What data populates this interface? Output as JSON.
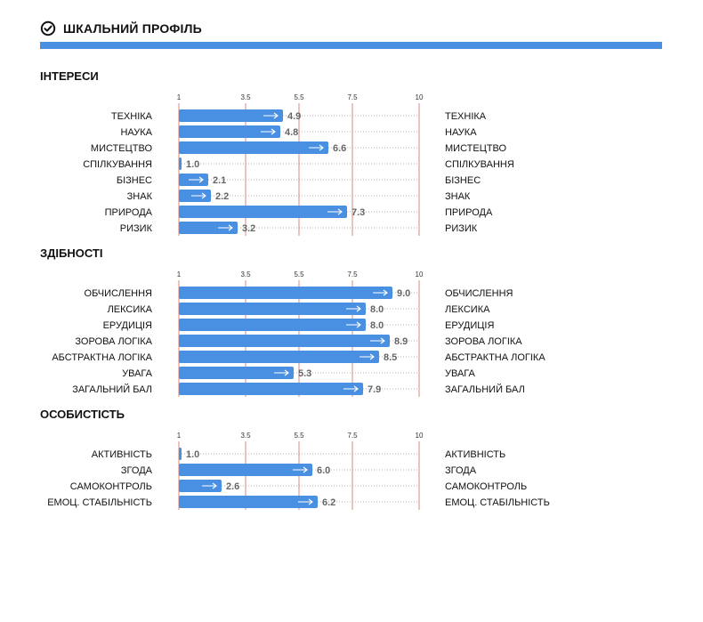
{
  "header": {
    "title": "ШКАЛЬНИЙ ПРОФІЛЬ",
    "icon": "check-circle-icon"
  },
  "colors": {
    "accent": "#4a90e2",
    "bar": "#4a90e2",
    "gridline": "#c0392b",
    "dots": "#999999"
  },
  "chart_data": [
    {
      "type": "bar",
      "orientation": "horizontal",
      "title": "ІНТЕРЕСИ",
      "xticks": [
        "1",
        "3.5",
        "5.5",
        "7.5",
        "10"
      ],
      "xlim": [
        1,
        10
      ],
      "categories": [
        "ТЕХНІКА",
        "НАУКА",
        "МИСТЕЦТВО",
        "СПІЛКУВАННЯ",
        "БІЗНЕС",
        "ЗНАК",
        "ПРИРОДА",
        "РИЗИК"
      ],
      "values": [
        4.9,
        4.8,
        6.6,
        1.0,
        2.1,
        2.2,
        7.3,
        3.2
      ],
      "value_labels": [
        "4.9",
        "4.8",
        "6.6",
        "1.0",
        "2.1",
        "2.2",
        "7.3",
        "3.2"
      ]
    },
    {
      "type": "bar",
      "orientation": "horizontal",
      "title": "ЗДІБНОСТІ",
      "xticks": [
        "1",
        "3.5",
        "5.5",
        "7.5",
        "10"
      ],
      "xlim": [
        1,
        10
      ],
      "categories": [
        "ОБЧИСЛЕННЯ",
        "ЛЕКСИКА",
        "ЕРУДИЦІЯ",
        "ЗОРОВА ЛОГІКА",
        "АБСТРАКТНА ЛОГІКА",
        "УВАГА",
        "ЗАГАЛЬНИЙ БАЛ"
      ],
      "values": [
        9.0,
        8.0,
        8.0,
        8.9,
        8.5,
        5.3,
        7.9
      ],
      "value_labels": [
        "9.0",
        "8.0",
        "8.0",
        "8.9",
        "8.5",
        "5.3",
        "7.9"
      ]
    },
    {
      "type": "bar",
      "orientation": "horizontal",
      "title": "ОСОБИСТІСТЬ",
      "xticks": [
        "1",
        "3.5",
        "5.5",
        "7.5",
        "10"
      ],
      "xlim": [
        1,
        10
      ],
      "categories": [
        "АКТИВНІСТЬ",
        "ЗГОДА",
        "САМОКОНТРОЛЬ",
        "ЕМОЦ. СТАБІЛЬНІСТЬ"
      ],
      "values": [
        1.0,
        6.0,
        2.6,
        6.2
      ],
      "value_labels": [
        "1.0",
        "6.0",
        "2.6",
        "6.2"
      ]
    }
  ]
}
